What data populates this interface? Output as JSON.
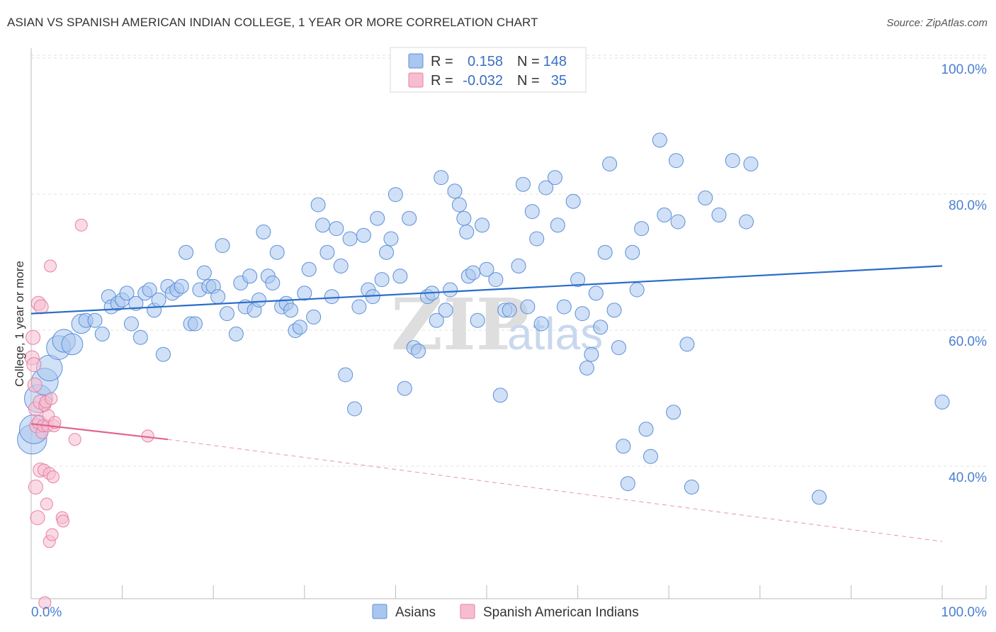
{
  "title": "ASIAN VS SPANISH AMERICAN INDIAN COLLEGE, 1 YEAR OR MORE CORRELATION CHART",
  "source": "Source: ZipAtlas.com",
  "colors": {
    "asian": "#5b8fd8",
    "asian_fill": "#a9c6ee",
    "spanish": "#e87fa2",
    "spanish_fill": "#f6bdd0",
    "trend_asian": "#2a6cc8",
    "trend_spanish": "#e06592",
    "tick": "#4a7fd0"
  },
  "legend": {
    "row1": {
      "r_label": "R =",
      "r_value": "0.158",
      "n_label": "N =",
      "n_value": "148"
    },
    "row2": {
      "r_label": "R =",
      "r_value": "-0.032",
      "n_label": "N =",
      "n_value": "35"
    }
  },
  "watermark": {
    "zip": "ZIP",
    "atlas": "atlas"
  },
  "chart_data": {
    "type": "scatter",
    "title": "ASIAN VS SPANISH AMERICAN INDIAN COLLEGE, 1 YEAR OR MORE CORRELATION CHART",
    "xlabel": "",
    "ylabel": "College, 1 year or more",
    "xlim": [
      0,
      100
    ],
    "ylim": [
      21,
      105
    ],
    "x_tick_labels": [
      "0.0%",
      "100.0%"
    ],
    "y_ticks": [
      {
        "value": 100,
        "label": "100.0%"
      },
      {
        "value": 80,
        "label": "80.0%"
      },
      {
        "value": 60,
        "label": "60.0%"
      },
      {
        "value": 40,
        "label": "40.0%"
      }
    ],
    "grid": true,
    "legend_position": "top-center",
    "series": [
      {
        "name": "Asians",
        "r": 0.158,
        "n": 148,
        "trend": {
          "x": [
            0,
            100
          ],
          "y": [
            64.0,
            71.0
          ],
          "style": "solid"
        },
        "points": [
          [
            0.1,
            45.5
          ],
          [
            0.3,
            47.0
          ],
          [
            0.8,
            51.5
          ],
          [
            1.5,
            54.0
          ],
          [
            2.0,
            56.0
          ],
          [
            3.0,
            59.0
          ],
          [
            3.6,
            60.0
          ],
          [
            4.5,
            59.5
          ],
          [
            5.5,
            62.5
          ],
          [
            6.0,
            63.0
          ],
          [
            7.0,
            63.0
          ],
          [
            7.8,
            61.0
          ],
          [
            8.5,
            66.5
          ],
          [
            8.8,
            65.0
          ],
          [
            9.5,
            65.5
          ],
          [
            10.0,
            66.0
          ],
          [
            10.5,
            67.0
          ],
          [
            11.0,
            62.5
          ],
          [
            11.5,
            65.5
          ],
          [
            12.0,
            60.5
          ],
          [
            12.5,
            67.0
          ],
          [
            13.0,
            67.5
          ],
          [
            13.5,
            64.5
          ],
          [
            14.0,
            66.0
          ],
          [
            14.5,
            58.0
          ],
          [
            15.0,
            68.0
          ],
          [
            15.5,
            67.0
          ],
          [
            16.0,
            67.5
          ],
          [
            16.5,
            68.0
          ],
          [
            17.0,
            73.0
          ],
          [
            17.5,
            62.5
          ],
          [
            18.0,
            62.5
          ],
          [
            18.5,
            67.5
          ],
          [
            19.0,
            70.0
          ],
          [
            19.5,
            68.0
          ],
          [
            20.0,
            68.0
          ],
          [
            20.5,
            66.5
          ],
          [
            21.0,
            74.0
          ],
          [
            21.5,
            64.0
          ],
          [
            22.5,
            61.0
          ],
          [
            23.0,
            68.5
          ],
          [
            23.5,
            65.0
          ],
          [
            24.0,
            69.5
          ],
          [
            24.5,
            64.5
          ],
          [
            25.0,
            66.0
          ],
          [
            25.5,
            76.0
          ],
          [
            26.0,
            69.5
          ],
          [
            26.5,
            68.5
          ],
          [
            27.0,
            73.0
          ],
          [
            27.5,
            65.0
          ],
          [
            28.0,
            65.5
          ],
          [
            28.5,
            64.5
          ],
          [
            29.0,
            61.5
          ],
          [
            29.5,
            62.0
          ],
          [
            30.0,
            67.0
          ],
          [
            30.5,
            70.5
          ],
          [
            31.0,
            63.5
          ],
          [
            31.5,
            80.0
          ],
          [
            32.0,
            77.0
          ],
          [
            32.5,
            73.0
          ],
          [
            33.0,
            66.5
          ],
          [
            33.5,
            76.5
          ],
          [
            34.0,
            71.0
          ],
          [
            34.5,
            55.0
          ],
          [
            35.0,
            75.0
          ],
          [
            35.5,
            50.0
          ],
          [
            36.0,
            65.0
          ],
          [
            36.5,
            75.5
          ],
          [
            37.0,
            67.5
          ],
          [
            37.5,
            66.5
          ],
          [
            38.0,
            78.0
          ],
          [
            38.5,
            69.0
          ],
          [
            39.0,
            73.0
          ],
          [
            39.5,
            75.0
          ],
          [
            40.0,
            81.5
          ],
          [
            40.5,
            69.5
          ],
          [
            41.0,
            53.0
          ],
          [
            41.5,
            78.0
          ],
          [
            42.0,
            59.0
          ],
          [
            42.5,
            58.5
          ],
          [
            43.5,
            66.5
          ],
          [
            44.0,
            67.0
          ],
          [
            44.5,
            63.0
          ],
          [
            45.0,
            84.0
          ],
          [
            45.5,
            64.5
          ],
          [
            46.0,
            67.5
          ],
          [
            46.5,
            82.0
          ],
          [
            47.0,
            80.0
          ],
          [
            47.5,
            78.0
          ],
          [
            47.8,
            76.0
          ],
          [
            48.0,
            69.5
          ],
          [
            48.5,
            70.0
          ],
          [
            49.0,
            63.0
          ],
          [
            49.5,
            77.0
          ],
          [
            50.0,
            70.5
          ],
          [
            51.0,
            69.0
          ],
          [
            51.5,
            52.0
          ],
          [
            52.0,
            64.5
          ],
          [
            52.5,
            64.5
          ],
          [
            53.5,
            71.0
          ],
          [
            54.0,
            83.0
          ],
          [
            54.5,
            65.0
          ],
          [
            55.0,
            79.0
          ],
          [
            55.5,
            75.0
          ],
          [
            56.0,
            62.5
          ],
          [
            56.5,
            82.5
          ],
          [
            57.5,
            84.0
          ],
          [
            57.8,
            77.0
          ],
          [
            58.5,
            65.0
          ],
          [
            59.5,
            80.5
          ],
          [
            60.0,
            69.0
          ],
          [
            60.5,
            64.0
          ],
          [
            61.0,
            56.0
          ],
          [
            61.5,
            58.0
          ],
          [
            62.0,
            67.0
          ],
          [
            62.5,
            62.0
          ],
          [
            63.0,
            73.0
          ],
          [
            63.5,
            86.0
          ],
          [
            64.0,
            64.5
          ],
          [
            64.5,
            59.0
          ],
          [
            65.0,
            44.5
          ],
          [
            65.5,
            39.0
          ],
          [
            66.0,
            73.0
          ],
          [
            66.5,
            67.5
          ],
          [
            67.0,
            76.5
          ],
          [
            67.5,
            47.0
          ],
          [
            68.0,
            43.0
          ],
          [
            69.0,
            89.5
          ],
          [
            69.5,
            78.5
          ],
          [
            70.5,
            49.5
          ],
          [
            70.8,
            86.5
          ],
          [
            71.0,
            77.5
          ],
          [
            72.0,
            59.5
          ],
          [
            72.5,
            38.5
          ],
          [
            74.0,
            81.0
          ],
          [
            75.5,
            78.5
          ],
          [
            77.0,
            86.5
          ],
          [
            78.5,
            77.5
          ],
          [
            79.0,
            86.0
          ],
          [
            86.5,
            37.0
          ],
          [
            100.0,
            51.0
          ]
        ]
      },
      {
        "name": "Spanish American Indians",
        "r": -0.032,
        "n": 35,
        "trend": {
          "x": [
            0,
            15
          ],
          "y": [
            47.8,
            45.5
          ],
          "style": "solid",
          "extended_x": [
            15,
            100
          ],
          "extended_y": [
            45.5,
            30.5
          ],
          "extended_style": "dashed"
        },
        "points": [
          [
            0.1,
            57.5
          ],
          [
            0.2,
            60.5
          ],
          [
            0.3,
            56.5
          ],
          [
            0.4,
            53.5
          ],
          [
            0.5,
            50.0
          ],
          [
            0.5,
            38.5
          ],
          [
            0.6,
            47.5
          ],
          [
            0.7,
            34.0
          ],
          [
            0.8,
            65.5
          ],
          [
            0.9,
            48.0
          ],
          [
            1.0,
            51.0
          ],
          [
            1.0,
            41.0
          ],
          [
            1.1,
            65.0
          ],
          [
            1.2,
            46.5
          ],
          [
            1.3,
            47.5
          ],
          [
            1.4,
            41.0
          ],
          [
            1.5,
            50.5
          ],
          [
            1.6,
            51.0
          ],
          [
            1.7,
            36.0
          ],
          [
            1.8,
            47.5
          ],
          [
            1.9,
            49.0
          ],
          [
            2.0,
            40.5
          ],
          [
            2.0,
            30.5
          ],
          [
            2.1,
            71.0
          ],
          [
            2.2,
            51.5
          ],
          [
            2.3,
            31.5
          ],
          [
            2.4,
            40.0
          ],
          [
            2.5,
            47.5
          ],
          [
            2.6,
            48.0
          ],
          [
            3.4,
            34.0
          ],
          [
            3.5,
            33.5
          ],
          [
            4.8,
            45.5
          ],
          [
            5.5,
            77.0
          ],
          [
            12.8,
            46.0
          ],
          [
            1.5,
            21.5
          ]
        ]
      }
    ]
  },
  "bottom_legend": {
    "asians": "Asians",
    "spanish": "Spanish American Indians"
  }
}
